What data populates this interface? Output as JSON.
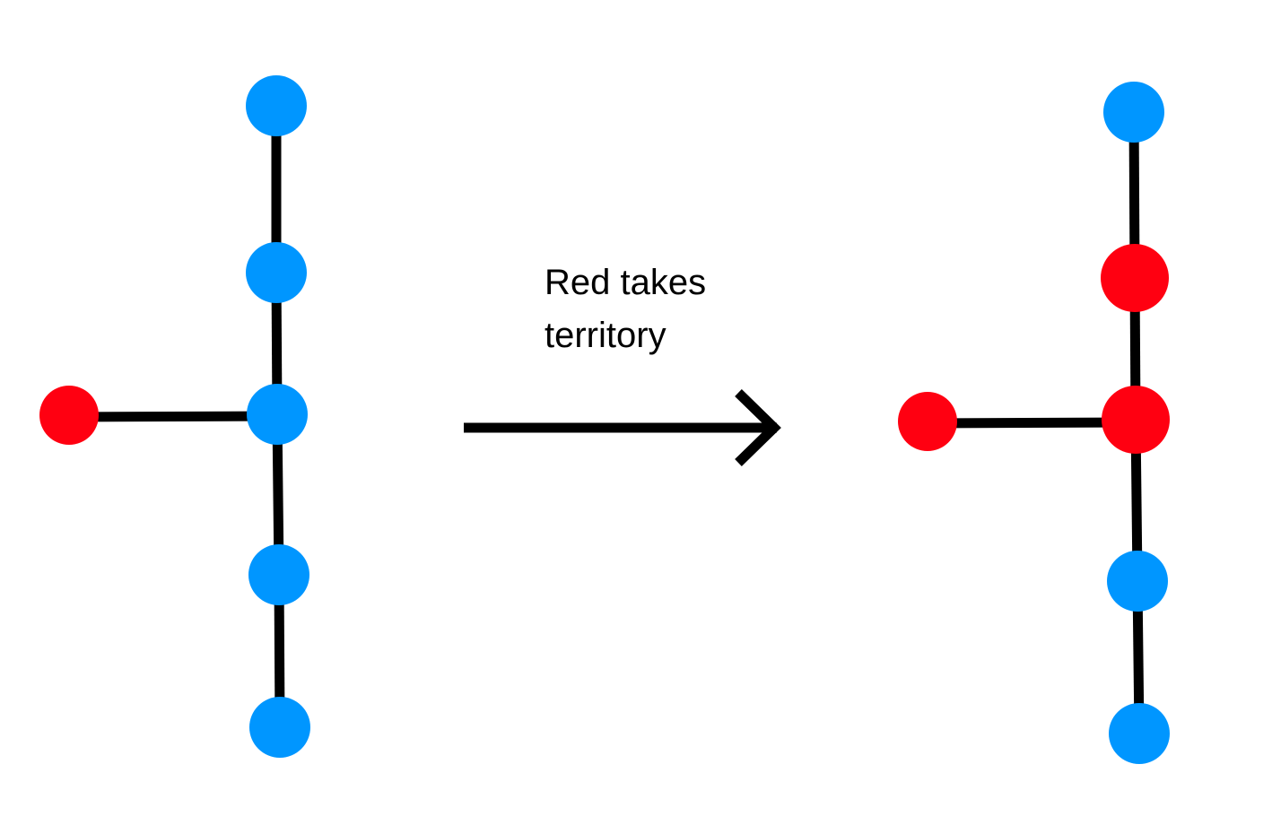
{
  "caption": {
    "line1": "Red takes",
    "line2": "territory"
  },
  "colors": {
    "blue": "#0096FF",
    "red": "#FF0011",
    "edge": "#000000",
    "arrow": "#000000"
  },
  "graphs": {
    "before": {
      "nodes": [
        {
          "id": "top",
          "color": "blue"
        },
        {
          "id": "upper",
          "color": "blue"
        },
        {
          "id": "hub",
          "color": "blue"
        },
        {
          "id": "lower",
          "color": "blue"
        },
        {
          "id": "bottom",
          "color": "blue"
        },
        {
          "id": "branch",
          "color": "red"
        }
      ]
    },
    "after": {
      "nodes": [
        {
          "id": "top",
          "color": "blue"
        },
        {
          "id": "upper",
          "color": "red"
        },
        {
          "id": "hub",
          "color": "red"
        },
        {
          "id": "lower",
          "color": "blue"
        },
        {
          "id": "bottom",
          "color": "blue"
        },
        {
          "id": "branch",
          "color": "red"
        }
      ]
    }
  }
}
